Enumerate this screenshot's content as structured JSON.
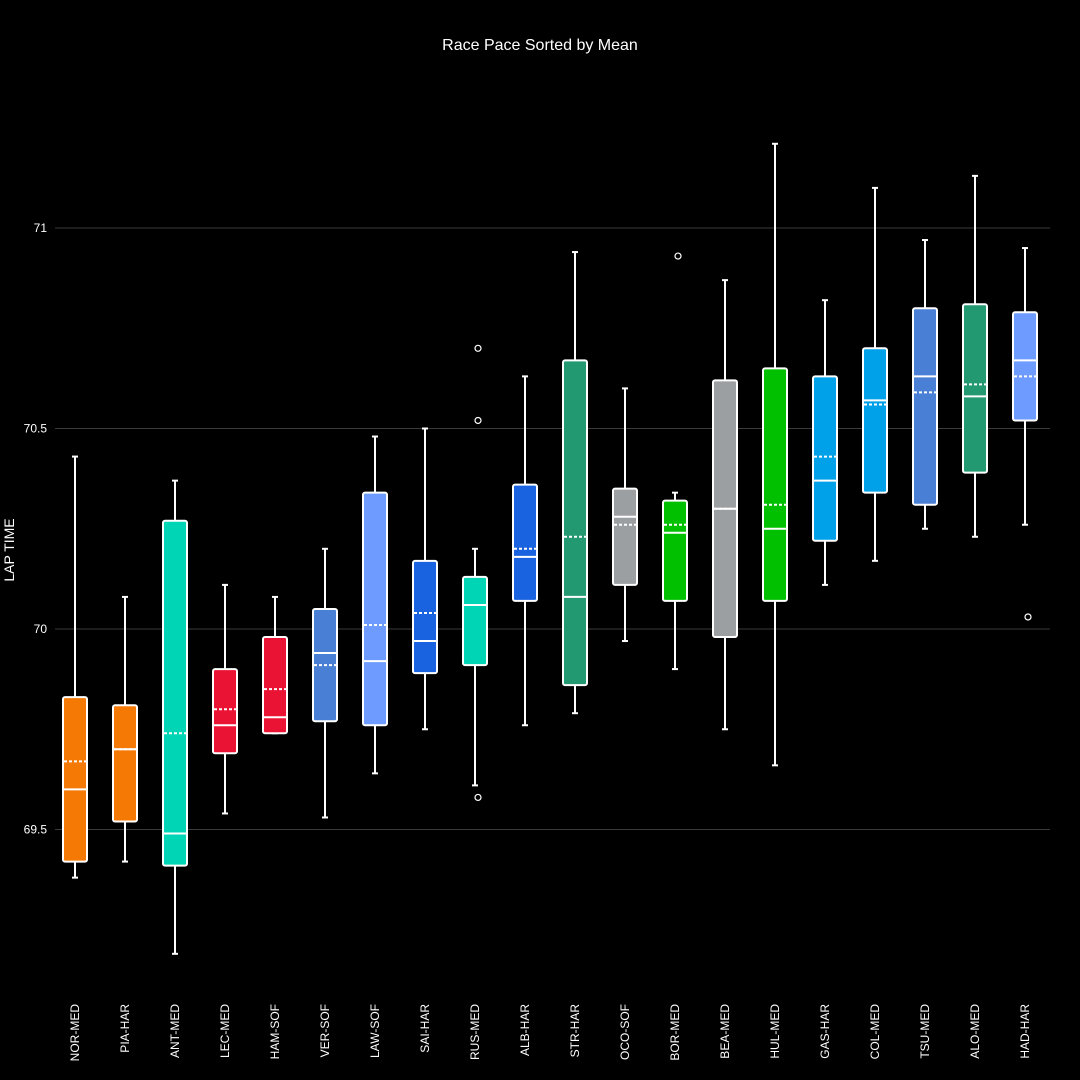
{
  "chart_data": {
    "type": "box",
    "title": "Race Pace Sorted by Mean",
    "ylabel": "LAP TIME",
    "xlabel": "",
    "ylim": [
      69.0,
      71.5
    ],
    "yticks": [
      69.5,
      70,
      70.5,
      71
    ],
    "ytick_labels": [
      "69.5",
      "70",
      "70.5",
      "71"
    ],
    "grid": true,
    "series": [
      {
        "name": "NOR-MED",
        "color": "#F47A05",
        "min": 69.38,
        "q1": 69.42,
        "median": 69.6,
        "q3": 69.83,
        "max": 70.43,
        "mean": 69.67,
        "outliers": []
      },
      {
        "name": "PIA-HAR",
        "color": "#F47A05",
        "min": 69.42,
        "q1": 69.52,
        "median": 69.7,
        "q3": 69.81,
        "max": 70.08,
        "mean": 69.7,
        "outliers": []
      },
      {
        "name": "ANT-MED",
        "color": "#00D5B5",
        "min": 69.19,
        "q1": 69.41,
        "median": 69.49,
        "q3": 70.27,
        "max": 70.37,
        "mean": 69.74,
        "outliers": []
      },
      {
        "name": "LEC-MED",
        "color": "#EA1333",
        "min": 69.54,
        "q1": 69.69,
        "median": 69.76,
        "q3": 69.9,
        "max": 70.11,
        "mean": 69.8,
        "outliers": []
      },
      {
        "name": "HAM-SOF",
        "color": "#EA1333",
        "min": 69.74,
        "q1": 69.74,
        "median": 69.78,
        "q3": 69.98,
        "max": 70.08,
        "mean": 69.85,
        "outliers": []
      },
      {
        "name": "VER-SOF",
        "color": "#4A7FD6",
        "min": 69.53,
        "q1": 69.77,
        "median": 69.94,
        "q3": 70.05,
        "max": 70.2,
        "mean": 69.91,
        "outliers": []
      },
      {
        "name": "LAW-SOF",
        "color": "#6E9BFF",
        "min": 69.64,
        "q1": 69.76,
        "median": 69.92,
        "q3": 70.34,
        "max": 70.48,
        "mean": 70.01,
        "outliers": []
      },
      {
        "name": "SAI-HAR",
        "color": "#1A63E0",
        "min": 69.75,
        "q1": 69.89,
        "median": 69.97,
        "q3": 70.17,
        "max": 70.5,
        "mean": 70.04,
        "outliers": []
      },
      {
        "name": "RUS-MED",
        "color": "#00D5B5",
        "min": 69.61,
        "q1": 69.91,
        "median": 70.06,
        "q3": 70.13,
        "max": 70.2,
        "mean": 70.06,
        "outliers": [
          69.58,
          70.52,
          70.7
        ]
      },
      {
        "name": "ALB-HAR",
        "color": "#1A63E0",
        "min": 69.76,
        "q1": 70.07,
        "median": 70.18,
        "q3": 70.36,
        "max": 70.63,
        "mean": 70.2,
        "outliers": []
      },
      {
        "name": "STR-HAR",
        "color": "#229971",
        "min": 69.79,
        "q1": 69.86,
        "median": 70.08,
        "q3": 70.67,
        "max": 70.94,
        "mean": 70.23,
        "outliers": []
      },
      {
        "name": "OCO-SOF",
        "color": "#9C9FA2",
        "min": 69.97,
        "q1": 70.11,
        "median": 70.28,
        "q3": 70.35,
        "max": 70.6,
        "mean": 70.26,
        "outliers": []
      },
      {
        "name": "BOR-MED",
        "color": "#00C000",
        "min": 69.9,
        "q1": 70.07,
        "median": 70.24,
        "q3": 70.32,
        "max": 70.34,
        "mean": 70.26,
        "outliers": [
          70.93
        ]
      },
      {
        "name": "BEA-MED",
        "color": "#9C9FA2",
        "min": 69.75,
        "q1": 69.98,
        "median": 70.3,
        "q3": 70.62,
        "max": 70.87,
        "mean": 70.3,
        "outliers": []
      },
      {
        "name": "HUL-MED",
        "color": "#00C000",
        "min": 69.66,
        "q1": 70.07,
        "median": 70.25,
        "q3": 70.65,
        "max": 71.21,
        "mean": 70.31,
        "outliers": []
      },
      {
        "name": "GAS-HAR",
        "color": "#00A1E8",
        "min": 70.11,
        "q1": 70.22,
        "median": 70.37,
        "q3": 70.63,
        "max": 70.82,
        "mean": 70.43,
        "outliers": []
      },
      {
        "name": "COL-MED",
        "color": "#00A1E8",
        "min": 70.17,
        "q1": 70.34,
        "median": 70.57,
        "q3": 70.7,
        "max": 71.1,
        "mean": 70.56,
        "outliers": []
      },
      {
        "name": "TSU-MED",
        "color": "#4A7FD6",
        "min": 70.25,
        "q1": 70.31,
        "median": 70.63,
        "q3": 70.8,
        "max": 70.97,
        "mean": 70.59,
        "outliers": []
      },
      {
        "name": "ALO-MED",
        "color": "#229971",
        "min": 70.23,
        "q1": 70.39,
        "median": 70.58,
        "q3": 70.81,
        "max": 71.13,
        "mean": 70.61,
        "outliers": []
      },
      {
        "name": "HAD-HAR",
        "color": "#6E9BFF",
        "min": 70.26,
        "q1": 70.52,
        "median": 70.67,
        "q3": 70.79,
        "max": 70.95,
        "mean": 70.63,
        "outliers": [
          70.03
        ]
      }
    ]
  }
}
